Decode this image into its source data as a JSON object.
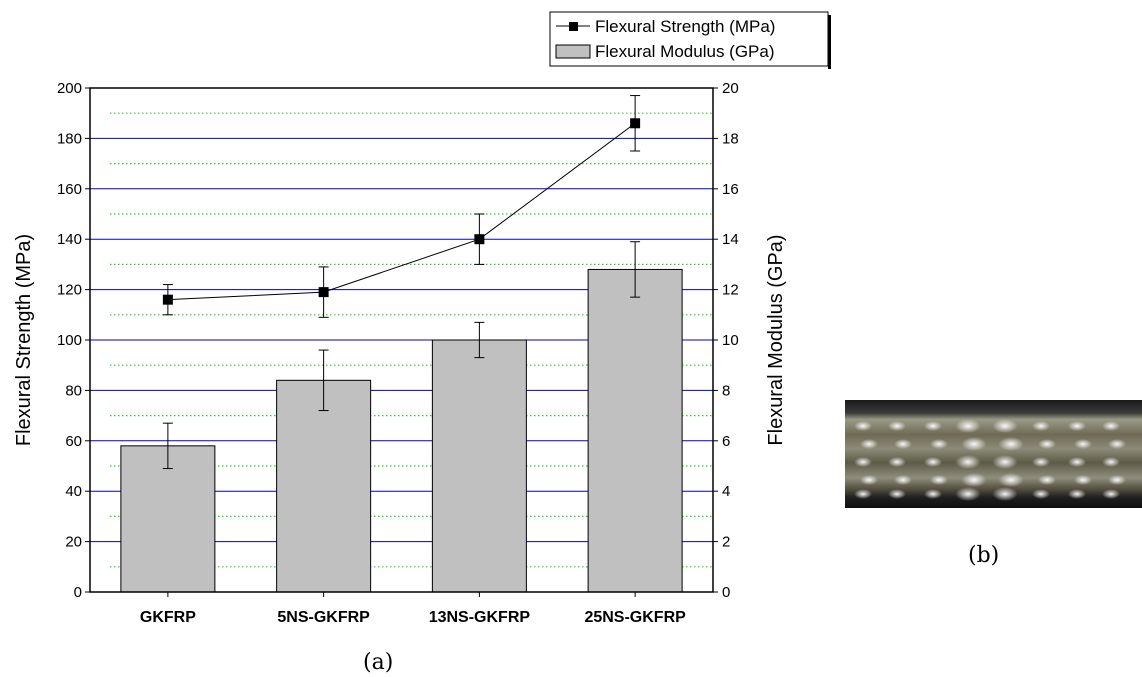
{
  "chart_data": {
    "type": "bar",
    "categories": [
      "GKFRP",
      "5NS-GKFRP",
      "13NS-GKFRP",
      "25NS-GKFRP"
    ],
    "series": [
      {
        "name": "Flexural Modulus (GPa)",
        "type": "bar",
        "axis": "right",
        "values": [
          5.8,
          8.4,
          10.0,
          12.8
        ],
        "errors": [
          0.9,
          1.2,
          0.7,
          1.1
        ],
        "color": "#c0c0c0"
      },
      {
        "name": "Flexural Strength (MPa)",
        "type": "line",
        "axis": "left",
        "marker": "square",
        "values": [
          116,
          119,
          140,
          186
        ],
        "errors": [
          6,
          10,
          10,
          11
        ],
        "color": "#000000"
      }
    ],
    "ylabel": "Flexural Strength (MPa)",
    "y2label": "Flexural Modulus (GPa)",
    "ylim": [
      0,
      200
    ],
    "y2lim": [
      0,
      20
    ],
    "yticks": [
      "0",
      "20",
      "40",
      "60",
      "80",
      "100",
      "120",
      "140",
      "160",
      "180",
      "200"
    ],
    "y2ticks": [
      "0",
      "2",
      "4",
      "6",
      "8",
      "10",
      "12",
      "14",
      "16",
      "18",
      "20"
    ],
    "grid": {
      "major": true,
      "major_color": "#0000cc",
      "minor": true,
      "minor_color": "#33cc33"
    },
    "legend_position": "top-right"
  },
  "captions": {
    "a": "(a)",
    "b": "(b)"
  },
  "photo": {
    "caption": "(b)"
  }
}
